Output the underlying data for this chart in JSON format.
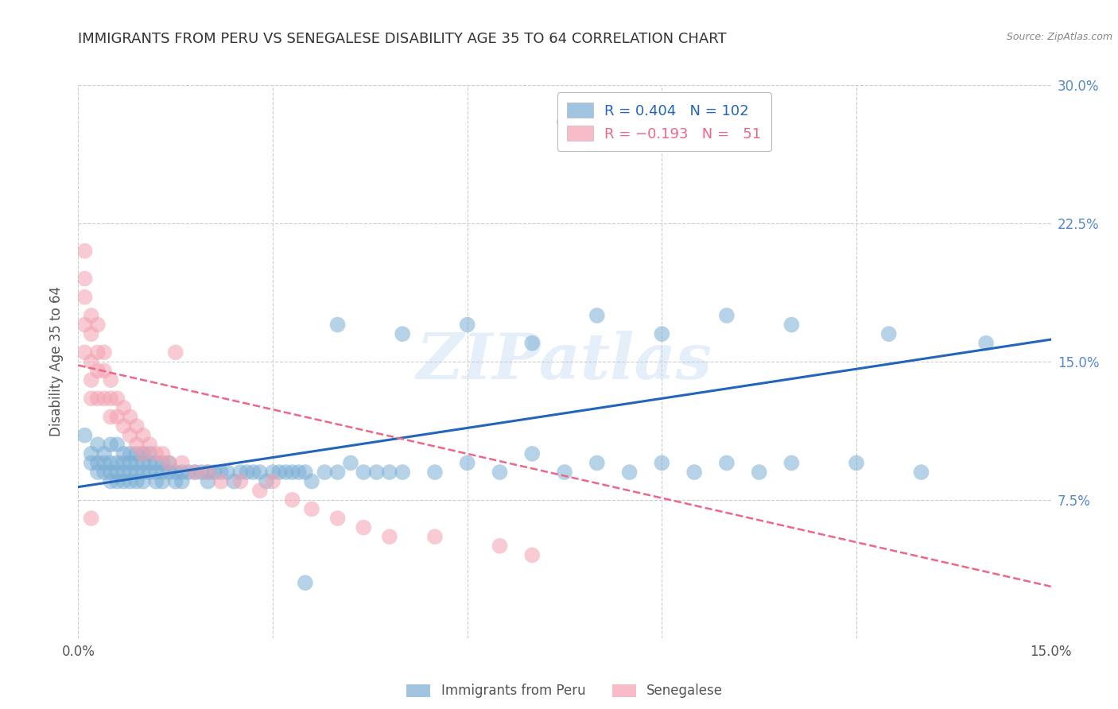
{
  "title": "IMMIGRANTS FROM PERU VS SENEGALESE DISABILITY AGE 35 TO 64 CORRELATION CHART",
  "source": "Source: ZipAtlas.com",
  "ylabel": "Disability Age 35 to 64",
  "x_min": 0.0,
  "x_max": 0.15,
  "y_min": 0.0,
  "y_max": 0.3,
  "x_ticks": [
    0.0,
    0.03,
    0.06,
    0.09,
    0.12,
    0.15
  ],
  "x_tick_labels": [
    "0.0%",
    "",
    "",
    "",
    "",
    "15.0%"
  ],
  "y_ticks_right": [
    0.0,
    0.075,
    0.15,
    0.225,
    0.3
  ],
  "y_tick_labels_right": [
    "",
    "7.5%",
    "15.0%",
    "22.5%",
    "30.0%"
  ],
  "legend_peru_R": "0.404",
  "legend_peru_N": "102",
  "legend_sene_R": "-0.193",
  "legend_sene_N": "51",
  "blue_color": "#7aadd4",
  "pink_color": "#f4a0b0",
  "line_blue": "#2266bb",
  "line_pink": "#ee6688",
  "watermark": "ZIPatlas",
  "peru_scatter_x": [
    0.001,
    0.002,
    0.002,
    0.003,
    0.003,
    0.003,
    0.004,
    0.004,
    0.004,
    0.005,
    0.005,
    0.005,
    0.005,
    0.006,
    0.006,
    0.006,
    0.006,
    0.007,
    0.007,
    0.007,
    0.007,
    0.008,
    0.008,
    0.008,
    0.008,
    0.009,
    0.009,
    0.009,
    0.009,
    0.01,
    0.01,
    0.01,
    0.01,
    0.011,
    0.011,
    0.011,
    0.012,
    0.012,
    0.012,
    0.013,
    0.013,
    0.013,
    0.014,
    0.014,
    0.015,
    0.015,
    0.016,
    0.016,
    0.017,
    0.018,
    0.019,
    0.02,
    0.02,
    0.021,
    0.022,
    0.023,
    0.024,
    0.025,
    0.026,
    0.027,
    0.028,
    0.029,
    0.03,
    0.031,
    0.032,
    0.033,
    0.034,
    0.035,
    0.036,
    0.038,
    0.04,
    0.042,
    0.044,
    0.046,
    0.048,
    0.05,
    0.055,
    0.06,
    0.065,
    0.07,
    0.075,
    0.08,
    0.085,
    0.09,
    0.095,
    0.1,
    0.105,
    0.11,
    0.12,
    0.13,
    0.04,
    0.05,
    0.06,
    0.07,
    0.08,
    0.09,
    0.1,
    0.11,
    0.125,
    0.14,
    0.035,
    0.075
  ],
  "peru_scatter_y": [
    0.11,
    0.1,
    0.095,
    0.105,
    0.095,
    0.09,
    0.1,
    0.095,
    0.09,
    0.105,
    0.095,
    0.09,
    0.085,
    0.105,
    0.095,
    0.09,
    0.085,
    0.1,
    0.095,
    0.09,
    0.085,
    0.1,
    0.095,
    0.09,
    0.085,
    0.1,
    0.095,
    0.09,
    0.085,
    0.1,
    0.095,
    0.09,
    0.085,
    0.1,
    0.095,
    0.09,
    0.095,
    0.09,
    0.085,
    0.095,
    0.09,
    0.085,
    0.095,
    0.09,
    0.09,
    0.085,
    0.09,
    0.085,
    0.09,
    0.09,
    0.09,
    0.09,
    0.085,
    0.09,
    0.09,
    0.09,
    0.085,
    0.09,
    0.09,
    0.09,
    0.09,
    0.085,
    0.09,
    0.09,
    0.09,
    0.09,
    0.09,
    0.09,
    0.085,
    0.09,
    0.09,
    0.095,
    0.09,
    0.09,
    0.09,
    0.09,
    0.09,
    0.095,
    0.09,
    0.1,
    0.09,
    0.095,
    0.09,
    0.095,
    0.09,
    0.095,
    0.09,
    0.095,
    0.095,
    0.09,
    0.17,
    0.165,
    0.17,
    0.16,
    0.175,
    0.165,
    0.175,
    0.17,
    0.165,
    0.16,
    0.03,
    0.28
  ],
  "sene_scatter_x": [
    0.001,
    0.001,
    0.001,
    0.001,
    0.001,
    0.002,
    0.002,
    0.002,
    0.002,
    0.002,
    0.003,
    0.003,
    0.003,
    0.003,
    0.004,
    0.004,
    0.004,
    0.005,
    0.005,
    0.005,
    0.006,
    0.006,
    0.007,
    0.007,
    0.008,
    0.008,
    0.009,
    0.009,
    0.01,
    0.01,
    0.011,
    0.012,
    0.013,
    0.014,
    0.015,
    0.016,
    0.018,
    0.02,
    0.022,
    0.025,
    0.028,
    0.03,
    0.033,
    0.036,
    0.04,
    0.044,
    0.048,
    0.055,
    0.065,
    0.07,
    0.002
  ],
  "sene_scatter_y": [
    0.21,
    0.195,
    0.185,
    0.17,
    0.155,
    0.175,
    0.165,
    0.15,
    0.14,
    0.13,
    0.17,
    0.155,
    0.145,
    0.13,
    0.155,
    0.145,
    0.13,
    0.14,
    0.13,
    0.12,
    0.13,
    0.12,
    0.125,
    0.115,
    0.12,
    0.11,
    0.115,
    0.105,
    0.11,
    0.1,
    0.105,
    0.1,
    0.1,
    0.095,
    0.155,
    0.095,
    0.09,
    0.09,
    0.085,
    0.085,
    0.08,
    0.085,
    0.075,
    0.07,
    0.065,
    0.06,
    0.055,
    0.055,
    0.05,
    0.045,
    0.065
  ],
  "peru_line_x": [
    0.0,
    0.15
  ],
  "peru_line_y": [
    0.082,
    0.162
  ],
  "sene_line_x": [
    0.0,
    0.15
  ],
  "sene_line_y": [
    0.148,
    0.028
  ],
  "background_color": "#ffffff",
  "grid_color": "#cccccc",
  "title_color": "#333333",
  "axis_label_color": "#555555",
  "right_tick_color": "#5588cc"
}
